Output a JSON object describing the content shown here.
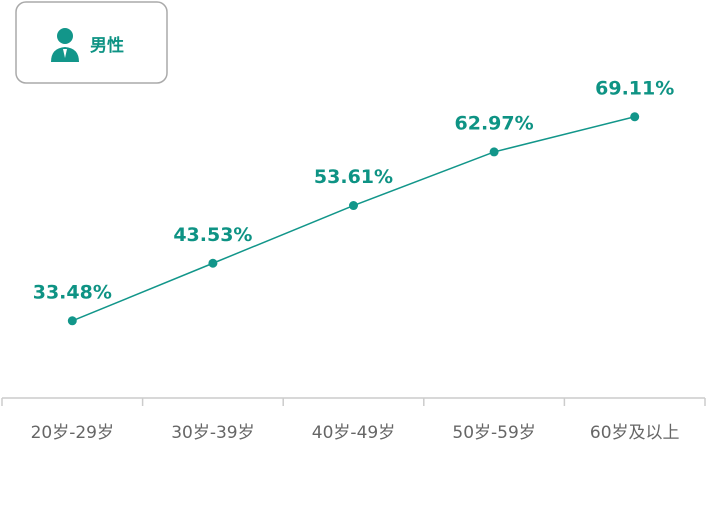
{
  "chart_data": {
    "type": "line",
    "categories": [
      "20岁-29岁",
      "30岁-39岁",
      "40岁-49岁",
      "50岁-59岁",
      "60岁及以上"
    ],
    "series": [
      {
        "name": "男性",
        "color": "#12968a",
        "values": [
          33.48,
          43.53,
          53.61,
          62.97,
          69.11
        ],
        "value_labels": [
          "33.48%",
          "43.53%",
          "53.61%",
          "62.97%",
          "69.11%"
        ]
      }
    ],
    "ylim": [
      20,
      80
    ]
  }
}
